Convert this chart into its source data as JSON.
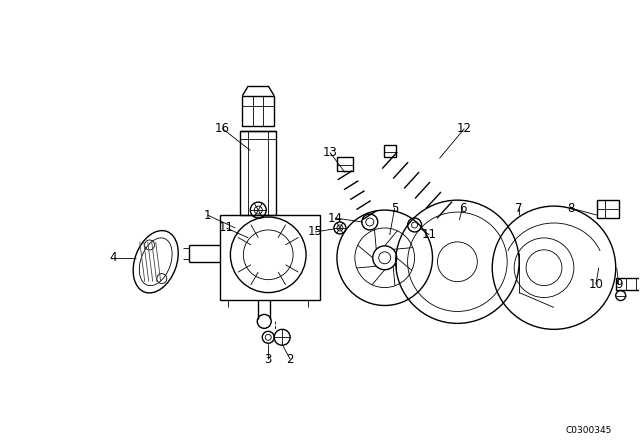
{
  "background_color": "#ffffff",
  "diagram_id": "C0300345",
  "figure_width": 6.4,
  "figure_height": 4.48,
  "dpi": 100,
  "line_color": "#000000",
  "font_size": 8.5
}
